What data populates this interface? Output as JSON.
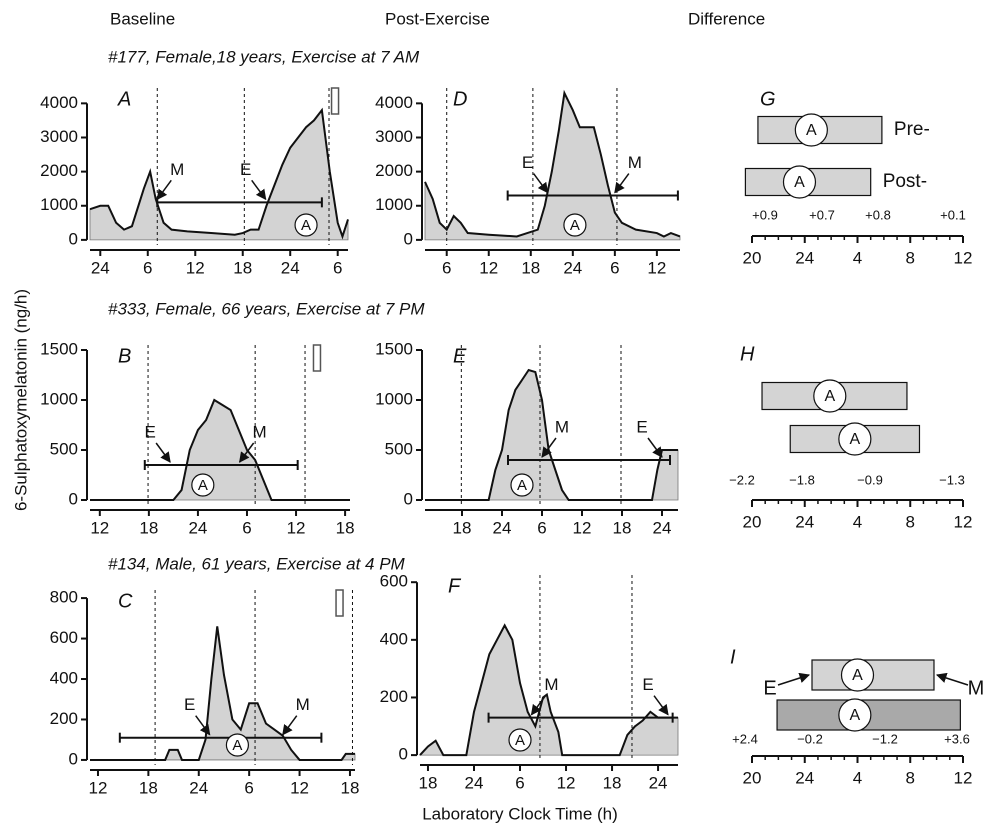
{
  "column_titles": [
    "Baseline",
    "Post-Exercise",
    "Difference"
  ],
  "row_titles": [
    "#177, Female,18 years, Exercise at 7 AM",
    "#333, Female, 66 years, Exercise at 7 PM",
    "#134, Male, 61 years, Exercise at 4 PM"
  ],
  "y_label": "6-Sulphatoxymelatonin (ng/h)",
  "x_label": "Laboratory Clock Time (h)",
  "chart_data": [
    {
      "type": "area",
      "panel": "A",
      "color": "#d3d3d3",
      "x": [
        22.7,
        24,
        25,
        26,
        27,
        28,
        29.5,
        30.3,
        31,
        32,
        33,
        35,
        38,
        41,
        42,
        43,
        44,
        45,
        46,
        47,
        48,
        49,
        50,
        51,
        52,
        53,
        54,
        54.6,
        55.3
      ],
      "values": [
        900,
        1000,
        1000,
        500,
        300,
        400,
        1500,
        2000,
        1200,
        500,
        300,
        250,
        200,
        150,
        200,
        300,
        300,
        1000,
        1600,
        2200,
        2700,
        3000,
        3300,
        3500,
        3800,
        2000,
        500,
        100,
        600
      ],
      "xlim": [
        22.7,
        55.3
      ],
      "ylim": [
        -150,
        4450
      ],
      "xticks": [
        24,
        {
          "value": 30,
          "label": "6"
        },
        {
          "value": 36,
          "label": "12"
        },
        {
          "value": 42,
          "label": "18"
        },
        {
          "value": 48,
          "label": "24"
        },
        {
          "value": 54,
          "label": "6"
        }
      ],
      "yticks": [
        0,
        1000,
        2000,
        3000,
        4000
      ],
      "light_transitions": [
        31.2,
        42.2,
        52.9
      ],
      "threshold": {
        "value": 1100,
        "x": [
          31.2,
          52
        ]
      },
      "annotations": [
        {
          "text": "M",
          "x": 31.2
        },
        {
          "text": "E",
          "x": 44.9
        },
        {
          "text": "A",
          "x": 50
        }
      ],
      "exercise": 53.6
    },
    {
      "type": "area",
      "panel": "D",
      "color": "#d3d3d3",
      "x": [
        26.9,
        28,
        29,
        30,
        31,
        32,
        33,
        36,
        40,
        43,
        44,
        45,
        46,
        46.8,
        48,
        49,
        51,
        52,
        53,
        54,
        55,
        57,
        60,
        61,
        62,
        63.3
      ],
      "values": [
        1700,
        1200,
        500,
        300,
        700,
        500,
        200,
        150,
        100,
        300,
        1000,
        2000,
        3200,
        4300,
        3800,
        3300,
        3300,
        2500,
        1600,
        800,
        500,
        300,
        200,
        100,
        200,
        100
      ],
      "xlim": [
        26.9,
        63.3
      ],
      "ylim": [
        -150,
        4450
      ],
      "xticks": [
        {
          "value": 30,
          "label": "6"
        },
        {
          "value": 36,
          "label": "12"
        },
        {
          "value": 42,
          "label": "18"
        },
        {
          "value": 48,
          "label": "24"
        },
        {
          "value": 54,
          "label": "6"
        },
        {
          "value": 60,
          "label": "12"
        }
      ],
      "yticks": [
        0,
        1000,
        2000,
        3000,
        4000
      ],
      "light_transitions": [
        30.0,
        42.3,
        54.3
      ],
      "threshold": {
        "value": 1300,
        "x": [
          38.7,
          63
        ]
      },
      "annotations": [
        {
          "text": "E",
          "x": 44.4
        },
        {
          "text": "M",
          "x": 54
        },
        {
          "text": "A",
          "x": 48.3
        }
      ]
    },
    {
      "type": "range",
      "panel": "G",
      "xlim": [
        20,
        36
      ],
      "xticks": [
        20,
        24,
        {
          "value": 28,
          "label": "4"
        },
        {
          "value": 32,
          "label": "8"
        },
        {
          "value": 36,
          "label": "12"
        }
      ],
      "series": [
        {
          "name": "Pre-",
          "color": "#d4d4d4",
          "values": [
            20.45,
            29.85
          ],
          "acrophase": 24.5,
          "label": "A"
        },
        {
          "name": "Post-",
          "color": "#d4d4d4",
          "values": [
            19.5,
            29.0
          ],
          "acrophase": 23.6,
          "label": "A"
        }
      ],
      "differences": {
        "values": [
          0.9,
          0.7,
          0.8,
          0.1
        ],
        "value_labels": [
          "+0.9",
          "+0.7",
          "+0.8",
          "+0.1"
        ]
      }
    },
    {
      "type": "area",
      "panel": "B",
      "color": "#d3d3d3",
      "x": [
        10.8,
        21,
        22,
        23,
        24,
        25,
        26,
        27,
        28,
        29,
        30,
        31,
        32,
        33,
        42.6
      ],
      "values": [
        0,
        0,
        100,
        500,
        700,
        800,
        1000,
        950,
        900,
        700,
        500,
        400,
        200,
        0,
        0
      ],
      "xlim": [
        10.8,
        42.6
      ],
      "ylim": [
        -50,
        1550
      ],
      "xticks": [
        12,
        18,
        24,
        {
          "value": 30,
          "label": "6"
        },
        {
          "value": 36,
          "label": "12"
        },
        {
          "value": 42,
          "label": "18"
        }
      ],
      "yticks": [
        0,
        500,
        1000,
        1500
      ],
      "light_transitions": [
        17.9,
        31.0,
        37.1
      ],
      "threshold": {
        "value": 350,
        "x": [
          17.5,
          36.2
        ]
      },
      "annotations": [
        {
          "text": "E",
          "x": 20.6
        },
        {
          "text": "M",
          "x": 29.1
        },
        {
          "text": "A",
          "x": 24.6
        }
      ],
      "exercise": 38.5
    },
    {
      "type": "area",
      "panel": "E",
      "color": "#d3d3d3",
      "x": [
        12.45,
        22,
        23,
        24,
        25,
        26,
        27,
        28,
        29,
        30,
        31,
        32,
        33,
        34,
        46.5,
        47.3,
        48,
        50.4
      ],
      "values": [
        0,
        0,
        300,
        500,
        900,
        1100,
        1200,
        1300,
        1280,
        1000,
        500,
        300,
        100,
        0,
        0,
        300,
        500,
        500
      ],
      "xlim": [
        12.45,
        50.4
      ],
      "ylim": [
        -50,
        1550
      ],
      "xticks": [
        18,
        24,
        {
          "value": 30,
          "label": "6"
        },
        {
          "value": 36,
          "label": "12"
        },
        {
          "value": 42,
          "label": "18"
        },
        {
          "value": 48,
          "label": "24"
        }
      ],
      "yticks": [
        0,
        500,
        1000,
        1500
      ],
      "light_transitions": [
        17.9,
        29.7,
        41.85
      ],
      "threshold": {
        "value": 400,
        "x": [
          24.9,
          49.2
        ]
      },
      "annotations": [
        {
          "text": "M",
          "x": 30
        },
        {
          "text": "E",
          "x": 48
        },
        {
          "text": "A",
          "x": 27
        }
      ]
    },
    {
      "type": "range",
      "panel": "H",
      "xlim": [
        20,
        36
      ],
      "xticks": [
        20,
        24,
        {
          "value": 28,
          "label": "4"
        },
        {
          "value": 32,
          "label": "8"
        },
        {
          "value": 36,
          "label": "12"
        }
      ],
      "series": [
        {
          "color": "#d4d4d4",
          "values": [
            20.76,
            31.75
          ],
          "acrophase": 25.9,
          "label": "A"
        },
        {
          "color": "#d4d4d4",
          "values": [
            22.9,
            32.7
          ],
          "acrophase": 27.8,
          "label": "A"
        }
      ],
      "differences": {
        "values": [
          -2.2,
          -1.8,
          -0.9,
          -1.3
        ],
        "value_labels": [
          "−2.2",
          "−1.8",
          "−0.9",
          "−1.3"
        ]
      }
    },
    {
      "type": "area",
      "panel": "C",
      "color": "#d3d3d3",
      "x": [
        11.05,
        20,
        20.5,
        21.5,
        22,
        24,
        24.8,
        25.5,
        26.2,
        27,
        28,
        29,
        30,
        31,
        32,
        33,
        34,
        35,
        36,
        41,
        41.5,
        42.6
      ],
      "values": [
        0,
        0,
        50,
        50,
        0,
        0,
        100,
        400,
        660,
        420,
        200,
        150,
        280,
        280,
        180,
        150,
        120,
        50,
        0,
        0,
        30,
        30
      ],
      "xlim": [
        11.05,
        42.6
      ],
      "ylim": [
        -25,
        840
      ],
      "xticks": [
        12,
        18,
        24,
        {
          "value": 30,
          "label": "6"
        },
        {
          "value": 36,
          "label": "12"
        },
        {
          "value": 42,
          "label": "18"
        }
      ],
      "yticks": [
        0,
        200,
        400,
        600,
        800
      ],
      "light_transitions": [
        18.8,
        30.7,
        42.3
      ],
      "threshold": {
        "value": 110,
        "x": [
          14.6,
          38.6
        ]
      },
      "annotations": [
        {
          "text": "E",
          "x": 25.3
        },
        {
          "text": "M",
          "x": 34
        },
        {
          "text": "A",
          "x": 28.6
        }
      ],
      "exercise": 40.7
    },
    {
      "type": "area",
      "panel": "F",
      "color": "#d3d3d3",
      "x": [
        16.96,
        18,
        19,
        20,
        23,
        24,
        25,
        26,
        27,
        28,
        29,
        30,
        31,
        32,
        33,
        33.5,
        34,
        35,
        35.5,
        43,
        44,
        45,
        46,
        47,
        48,
        50.6
      ],
      "values": [
        0,
        30,
        50,
        0,
        0,
        150,
        250,
        350,
        400,
        450,
        400,
        250,
        150,
        100,
        200,
        210,
        150,
        80,
        0,
        0,
        70,
        100,
        120,
        150,
        130,
        130
      ],
      "xlim": [
        16.96,
        50.6
      ],
      "ylim": [
        -17,
        625
      ],
      "xticks": [
        18,
        24,
        {
          "value": 30,
          "label": "6"
        },
        {
          "value": 36,
          "label": "12"
        },
        {
          "value": 42,
          "label": "18"
        },
        {
          "value": 48,
          "label": "24"
        }
      ],
      "yticks": [
        0,
        200,
        400,
        600
      ],
      "light_transitions": [
        32.6,
        44.6
      ],
      "threshold": {
        "value": 130,
        "x": [
          25.9,
          49.9
        ]
      },
      "annotations": [
        {
          "text": "M",
          "x": 31.5
        },
        {
          "text": "E",
          "x": 49.3
        },
        {
          "text": "A",
          "x": 30
        }
      ]
    },
    {
      "type": "range",
      "panel": "I",
      "xlim": [
        20,
        36
      ],
      "xticks": [
        20,
        24,
        {
          "value": 28,
          "label": "4"
        },
        {
          "value": 32,
          "label": "8"
        },
        {
          "value": 36,
          "label": "12"
        }
      ],
      "series": [
        {
          "color": "#d4d4d4",
          "values": [
            24.55,
            33.8
          ],
          "acrophase": 28.0,
          "label": "A"
        },
        {
          "color": "#a9a9a9",
          "values": [
            21.9,
            35.8
          ],
          "acrophase": 27.8,
          "label": "A"
        }
      ],
      "differences": {
        "values": [
          2.4,
          -0.2,
          -1.2,
          3.6
        ],
        "value_labels": [
          "+2.4",
          "−0.2",
          "−1.2",
          "+3.6"
        ]
      },
      "annotations": [
        {
          "text": "E"
        },
        {
          "text": "M"
        }
      ]
    }
  ]
}
